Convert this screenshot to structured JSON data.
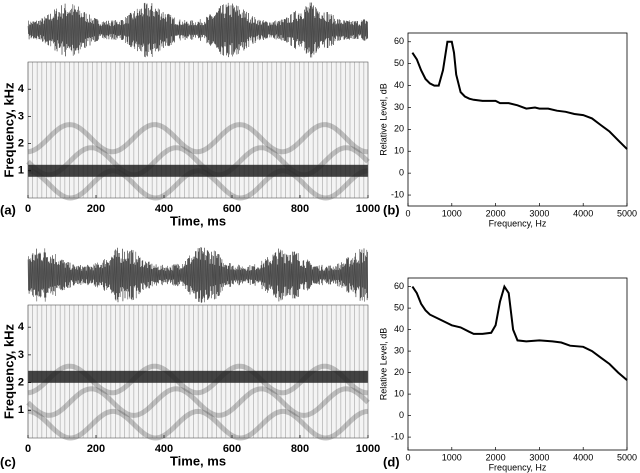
{
  "chart_data": [
    {
      "type": "spectrogram",
      "panel_label": "(a)",
      "xlabel": "Time, ms",
      "ylabel": "Frequency, kHz",
      "xlim": [
        0,
        1000
      ],
      "xticks": [
        0,
        200,
        400,
        600,
        800,
        1000
      ],
      "ylim": [
        0,
        5
      ],
      "yticks": [
        1,
        2,
        3,
        4
      ]
    },
    {
      "type": "line",
      "panel_label": "(b)",
      "xlabel": "Frequency, Hz",
      "ylabel": "Relative Level, dB",
      "color": "#000000",
      "x": [
        100,
        200,
        300,
        400,
        500,
        600,
        700,
        800,
        900,
        1000,
        1050,
        1100,
        1200,
        1300,
        1400,
        1500,
        1700,
        2000,
        2100,
        2300,
        2500,
        2700,
        2900,
        3000,
        3200,
        3400,
        3600,
        3800,
        4000,
        4200,
        4400,
        4600,
        4800,
        5000
      ],
      "values": [
        55,
        52,
        47,
        43,
        41,
        40,
        40,
        47,
        60,
        60,
        55,
        45,
        37,
        35,
        34,
        33.5,
        33,
        33,
        32,
        32,
        31,
        29.5,
        30,
        29.5,
        29.5,
        28.5,
        28,
        27,
        26.5,
        25,
        22,
        19,
        15,
        11
      ],
      "xlim": [
        0,
        5000
      ],
      "xticks": [
        0,
        1000,
        2000,
        3000,
        4000,
        5000
      ],
      "ylim": [
        -15,
        64
      ],
      "yticks": [
        -10,
        0,
        10,
        20,
        30,
        40,
        50,
        60
      ]
    },
    {
      "type": "spectrogram",
      "panel_label": "(c)",
      "xlabel": "Time, ms",
      "ylabel": "Frequency, kHz",
      "xlim": [
        0,
        1000
      ],
      "xticks": [
        0,
        200,
        400,
        600,
        800,
        1000
      ],
      "ylim": [
        0,
        4.8
      ],
      "yticks": [
        1,
        2,
        3,
        4
      ]
    },
    {
      "type": "line",
      "panel_label": "(d)",
      "xlabel": "Frequency, Hz",
      "ylabel": "Relative Level, dB",
      "color": "#000000",
      "x": [
        100,
        200,
        300,
        400,
        500,
        700,
        900,
        1000,
        1200,
        1400,
        1500,
        1700,
        1900,
        2000,
        2100,
        2200,
        2300,
        2400,
        2500,
        2700,
        3000,
        3300,
        3500,
        3700,
        4000,
        4200,
        4400,
        4600,
        4800,
        5000
      ],
      "values": [
        60,
        57,
        52,
        49,
        47,
        45,
        43,
        42,
        41,
        39,
        38,
        38,
        38.5,
        42,
        53,
        60,
        57,
        40,
        35,
        34.5,
        35,
        34.5,
        34,
        32.5,
        32,
        30,
        27,
        24,
        20,
        16.5
      ],
      "xlim": [
        0,
        5000
      ],
      "xticks": [
        0,
        1000,
        2000,
        3000,
        4000,
        5000
      ],
      "ylim": [
        -16,
        64
      ],
      "yticks": [
        -10,
        0,
        10,
        20,
        30,
        40,
        50,
        60
      ]
    }
  ]
}
